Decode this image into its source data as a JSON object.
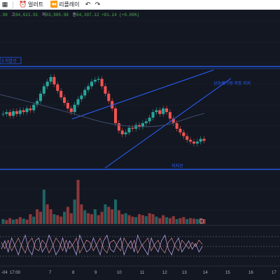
{
  "toolbar": {
    "alert_label": "얼러트",
    "replay_label": "리플레이"
  },
  "ohlc": {
    "open": ".98",
    "high_label": "고",
    "high": "84,621.91",
    "low_label": "저",
    "low": "83,985.98",
    "close_label": "종",
    "close": "84,397.12",
    "change": "+81.14 (+0.09%)"
  },
  "price_tag": "3 지합선",
  "annotations": {
    "support_label": "지지선",
    "channel_label": "상승쐐기형 저항 지지"
  },
  "x_labels": [
    "-04",
    "17:00",
    "7",
    "8",
    "9",
    "10",
    "11",
    "12",
    "13",
    "14",
    "15",
    "16",
    "17"
  ],
  "colors": {
    "up": "#26a69a",
    "down": "#ef5350",
    "line": "#2962ff",
    "background": "#131722"
  },
  "chart_data": {
    "type": "candlestick",
    "x_ticks": [
      "-04",
      "17:00",
      "7",
      "8",
      "9",
      "10",
      "11",
      "12",
      "13",
      "14",
      "15",
      "16",
      "17"
    ],
    "close_path": [
      0.6,
      0.62,
      0.58,
      0.63,
      0.6,
      0.64,
      0.62,
      0.66,
      0.64,
      0.7,
      0.74,
      0.82,
      0.9,
      0.95,
      1.0,
      0.92,
      0.85,
      0.78,
      0.72,
      0.66,
      0.62,
      0.7,
      0.76,
      0.8,
      0.86,
      0.9,
      0.95,
      0.97,
      0.98,
      0.9,
      0.82,
      0.74,
      0.66,
      0.5,
      0.42,
      0.38,
      0.4,
      0.45,
      0.44,
      0.48,
      0.46,
      0.5,
      0.52,
      0.56,
      0.62,
      0.64,
      0.6,
      0.66,
      0.62,
      0.55,
      0.5,
      0.44,
      0.4,
      0.36,
      0.32,
      0.3,
      0.28,
      0.3,
      0.33,
      0.31
    ],
    "volume_path": [
      0.1,
      0.08,
      0.12,
      0.09,
      0.1,
      0.14,
      0.11,
      0.09,
      0.2,
      0.15,
      0.3,
      0.25,
      0.7,
      0.4,
      0.3,
      0.2,
      0.18,
      0.15,
      0.25,
      0.35,
      0.22,
      0.5,
      0.9,
      0.4,
      0.28,
      0.22,
      0.2,
      0.3,
      0.18,
      0.25,
      0.4,
      0.35,
      0.3,
      0.5,
      0.28,
      0.2,
      0.22,
      0.18,
      0.15,
      0.14,
      0.2,
      0.18,
      0.16,
      0.22,
      0.2,
      0.15,
      0.12,
      0.18,
      0.14,
      0.12,
      0.16,
      0.1,
      0.12,
      0.14,
      0.1,
      0.12,
      0.11,
      0.1,
      0.12,
      0.1
    ],
    "oscillator_path": [
      0.4,
      0.7,
      0.3,
      0.8,
      0.5,
      0.2,
      0.6,
      0.9,
      0.4,
      0.2,
      0.7,
      0.8,
      0.3,
      0.5,
      0.9,
      0.6,
      0.2,
      0.4,
      0.8,
      0.3,
      0.7,
      0.5,
      0.2,
      0.9,
      0.6,
      0.3,
      0.4,
      0.8,
      0.5,
      0.2,
      0.7,
      0.9,
      0.4,
      0.3,
      0.6,
      0.8,
      0.2,
      0.5,
      0.7,
      0.3,
      0.9,
      0.6,
      0.4,
      0.2,
      0.8,
      0.5,
      0.3,
      0.7,
      0.9,
      0.4,
      0.2,
      0.6,
      0.8,
      0.3,
      0.5,
      0.7,
      0.4,
      0.6,
      0.3,
      0.5
    ]
  }
}
